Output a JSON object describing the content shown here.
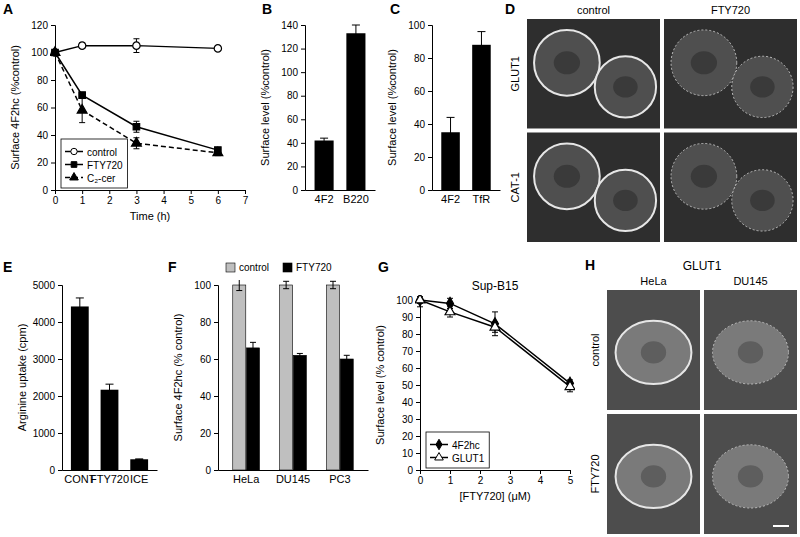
{
  "chart_data": [
    {
      "panel": "A",
      "type": "line",
      "x_label": "Time (h)",
      "y_label": "Surface 4F2hc (%control)",
      "x": [
        0,
        1,
        3,
        6
      ],
      "xlim": [
        0,
        7
      ],
      "xticks": [
        0,
        1,
        2,
        3,
        4,
        5,
        6,
        7
      ],
      "ylim": [
        0,
        120
      ],
      "yticks": [
        0,
        20,
        40,
        60,
        80,
        100,
        120
      ],
      "legend": "bottom-left",
      "series": [
        {
          "name": "control",
          "color": "#000000",
          "marker": "circle-open",
          "line_style": "solid",
          "values": [
            100,
            105,
            105,
            103
          ],
          "errors": [
            null,
            2,
            5,
            1
          ]
        },
        {
          "name": "FTY720",
          "color": "#000000",
          "marker": "square",
          "line_style": "solid",
          "values": [
            100,
            69,
            46,
            29
          ],
          "errors": [
            null,
            2,
            4,
            2
          ]
        },
        {
          "name": "C₂-cer",
          "color": "#000000",
          "marker": "triangle",
          "line_style": "dashed",
          "values": [
            100,
            58,
            34,
            27
          ],
          "errors": [
            null,
            9,
            4,
            2
          ]
        }
      ]
    },
    {
      "panel": "B",
      "type": "bar",
      "y_label": "Surface level (%control)",
      "categories": [
        "4F2",
        "B220"
      ],
      "values": [
        42,
        133
      ],
      "errors": [
        2,
        7
      ],
      "color": "#000000",
      "ylim": [
        0,
        140
      ],
      "yticks": [
        0,
        20,
        40,
        60,
        80,
        100,
        120,
        140
      ]
    },
    {
      "panel": "C",
      "type": "bar",
      "y_label": "Surface level (%control)",
      "categories": [
        "4F2",
        "TfR"
      ],
      "values": [
        35,
        88
      ],
      "errors": [
        9,
        8
      ],
      "color": "#000000",
      "ylim": [
        0,
        100
      ],
      "yticks": [
        0,
        20,
        40,
        60,
        80,
        100
      ]
    },
    {
      "panel": "D",
      "type": "image",
      "columns": [
        "control",
        "FTY720"
      ],
      "rows": [
        "GLUT1",
        "CAT-1"
      ]
    },
    {
      "panel": "E",
      "type": "bar",
      "y_label": "Arginine uptake (cpm)",
      "categories": [
        "CONT",
        "FTY720",
        "ICE"
      ],
      "values": [
        4420,
        2170,
        290
      ],
      "errors": [
        230,
        150,
        10
      ],
      "color": "#000000",
      "ylim": [
        0,
        5000
      ],
      "yticks": [
        0,
        1000,
        2000,
        3000,
        4000,
        5000
      ]
    },
    {
      "panel": "F",
      "type": "bar",
      "y_label": "Surface 4F2hc (% control)",
      "categories": [
        "HeLa",
        "DU145",
        "PC3"
      ],
      "legend": "top",
      "ylim": [
        0,
        100
      ],
      "yticks": [
        0,
        20,
        40,
        60,
        80,
        100
      ],
      "series": [
        {
          "name": "control",
          "color": "#bfbfbf",
          "values": [
            100,
            100,
            100
          ],
          "errors": [
            3,
            2,
            2
          ]
        },
        {
          "name": "FTY720",
          "color": "#000000",
          "values": [
            66,
            62,
            60
          ],
          "errors": [
            3,
            1,
            2
          ]
        }
      ]
    },
    {
      "panel": "G",
      "type": "line",
      "title": "Sup-B15",
      "x_label": "[FTY720] (μM)",
      "y_label": "Surface level (% control)",
      "x": [
        0,
        1,
        2.5,
        5
      ],
      "xlim": [
        0,
        5
      ],
      "xticks": [
        0,
        1,
        2,
        3,
        4,
        5
      ],
      "ylim": [
        0,
        100
      ],
      "yticks": [
        0,
        10,
        20,
        30,
        40,
        50,
        60,
        70,
        80,
        90,
        100
      ],
      "legend": "bottom-left",
      "series": [
        {
          "name": "4F2hc",
          "color": "#000000",
          "marker": "diamond",
          "line_style": "solid",
          "values": [
            100,
            98,
            86,
            51
          ],
          "errors": [
            2,
            3,
            7,
            2
          ]
        },
        {
          "name": "GLUT1",
          "color": "#000000",
          "marker": "triangle-open",
          "line_style": "solid",
          "values": [
            100,
            93,
            84,
            49
          ],
          "errors": [
            4,
            3,
            3,
            3
          ]
        }
      ]
    },
    {
      "panel": "H",
      "type": "image",
      "title": "GLUT1",
      "columns": [
        "HeLa",
        "DU145"
      ],
      "rows": [
        "control",
        "FTY720"
      ]
    }
  ]
}
